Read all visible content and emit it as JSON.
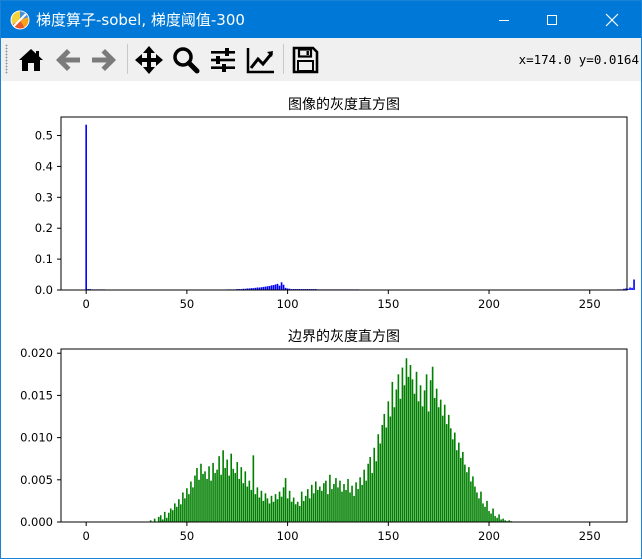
{
  "window": {
    "title": "梯度算子-sobel, 梯度阈值-300",
    "controls": [
      "minimize",
      "maximize",
      "close"
    ]
  },
  "toolbar": {
    "tools": [
      {
        "name": "home",
        "icon": "home-icon"
      },
      {
        "name": "back",
        "icon": "arrow-left-icon"
      },
      {
        "name": "forward",
        "icon": "arrow-right-icon"
      },
      {
        "name": "pan",
        "icon": "move-icon"
      },
      {
        "name": "zoom",
        "icon": "magnifier-icon"
      },
      {
        "name": "subplots",
        "icon": "sliders-icon"
      },
      {
        "name": "edit-axes",
        "icon": "chart-line-icon"
      },
      {
        "name": "save",
        "icon": "floppy-disk-icon"
      }
    ],
    "coords": "x=174.0 y=0.0164"
  },
  "chart_data": [
    {
      "type": "bar",
      "title": "图像的灰度直方图",
      "color": "#0000ff",
      "xlim": [
        -12.5,
        268.5
      ],
      "ylim": [
        0,
        0.56
      ],
      "xticks": [
        0,
        50,
        100,
        150,
        200,
        250
      ],
      "yticks": [
        0.0,
        0.1,
        0.2,
        0.3,
        0.4,
        0.5
      ],
      "xtick_labels": [
        "0",
        "50",
        "100",
        "150",
        "200",
        "250"
      ],
      "ytick_labels": [
        "0.0",
        "0.1",
        "0.2",
        "0.3",
        "0.4",
        "0.5"
      ],
      "bins_start": 0,
      "values": [
        0.535,
        0.003,
        0.003,
        0.002,
        0.002,
        0.002,
        0.002,
        0.002,
        0.002,
        0.002,
        0,
        0,
        0,
        0,
        0,
        0,
        0,
        0,
        0,
        0,
        0,
        0,
        0,
        0,
        0,
        0,
        0,
        0,
        0,
        0,
        0,
        0,
        0,
        0,
        0,
        0,
        0,
        0,
        0,
        0,
        0,
        0,
        0,
        0,
        0,
        0,
        0,
        0,
        0,
        0,
        0,
        0,
        0,
        0,
        0,
        0,
        0,
        0,
        0.001,
        0.001,
        0.001,
        0.001,
        0.001,
        0.001,
        0.001,
        0.001,
        0.001,
        0.001,
        0.001,
        0.001,
        0.002,
        0.002,
        0.002,
        0.002,
        0.002,
        0.003,
        0.003,
        0.003,
        0.004,
        0.004,
        0.005,
        0.005,
        0.006,
        0.006,
        0.007,
        0.008,
        0.008,
        0.009,
        0.01,
        0.011,
        0.012,
        0.013,
        0.015,
        0.016,
        0.018,
        0.02,
        0.014,
        0.025,
        0.017,
        0.007,
        0.005,
        0.004,
        0.003,
        0.003,
        0.003,
        0.003,
        0.003,
        0.003,
        0.003,
        0.003,
        0.003,
        0.003,
        0.003,
        0.003,
        0.003,
        0.002,
        0.002,
        0.002,
        0.002,
        0.002,
        0.002,
        0.002,
        0.002,
        0.002,
        0.002,
        0.002,
        0.002,
        0.002,
        0.002,
        0.002,
        0.002,
        0.002,
        0.002,
        0.002,
        0.002,
        0.002,
        0.001,
        0,
        0,
        0,
        0,
        0,
        0,
        0,
        0,
        0,
        0,
        0,
        0,
        0,
        0,
        0,
        0,
        0,
        0,
        0,
        0,
        0,
        0,
        0,
        0,
        0,
        0,
        0,
        0,
        0,
        0,
        0,
        0,
        0,
        0,
        0,
        0,
        0,
        0,
        0,
        0,
        0,
        0,
        0,
        0,
        0,
        0,
        0,
        0,
        0,
        0,
        0,
        0,
        0,
        0,
        0,
        0,
        0,
        0,
        0,
        0,
        0,
        0,
        0,
        0,
        0,
        0,
        0,
        0,
        0,
        0,
        0,
        0,
        0,
        0,
        0,
        0,
        0,
        0,
        0,
        0,
        0,
        0,
        0,
        0,
        0,
        0,
        0,
        0,
        0,
        0,
        0,
        0,
        0,
        0,
        0,
        0,
        0,
        0,
        0,
        0,
        0,
        0,
        0,
        0,
        0,
        0,
        0,
        0,
        0,
        0,
        0,
        0,
        0,
        0,
        0,
        0,
        0,
        0,
        0,
        0,
        0,
        0,
        0,
        0,
        0,
        0,
        0,
        0.002,
        0.002,
        0.002,
        0.004,
        0.005,
        0.004,
        0.008,
        0.007,
        0.034
      ]
    },
    {
      "type": "bar",
      "title": "边界的灰度直方图",
      "color": "#008000",
      "xlim": [
        -12.5,
        268.5
      ],
      "ylim": [
        0,
        0.0205
      ],
      "xticks": [
        0,
        50,
        100,
        150,
        200,
        250
      ],
      "yticks": [
        0.0,
        0.005,
        0.01,
        0.015,
        0.02
      ],
      "xtick_labels": [
        "0",
        "50",
        "100",
        "150",
        "200",
        "250"
      ],
      "ytick_labels": [
        "0.000",
        "0.005",
        "0.010",
        "0.015",
        "0.020"
      ],
      "bins_start": 32,
      "values": [
        0.0002,
        0,
        0.0004,
        0,
        0.0006,
        0.0008,
        0.0003,
        0.0012,
        0.0005,
        0.0011,
        0.0016,
        0.0014,
        0.0022,
        0.0018,
        0.0027,
        0.0021,
        0.0035,
        0.0028,
        0.004,
        0.0033,
        0.0048,
        0.0041,
        0.0055,
        0.0064,
        0.005,
        0.0069,
        0.0057,
        0.006,
        0.0051,
        0.0066,
        0.0049,
        0.007,
        0.0058,
        0.0062,
        0.0078,
        0.0056,
        0.0085,
        0.0064,
        0.0074,
        0.0055,
        0.0081,
        0.0063,
        0.0058,
        0.0071,
        0.0051,
        0.0065,
        0.0046,
        0.006,
        0.0042,
        0.0049,
        0.0038,
        0.0079,
        0.0033,
        0.0041,
        0.0029,
        0.0037,
        0.0025,
        0.0034,
        0.0028,
        0.0022,
        0.0031,
        0.0024,
        0.0033,
        0.0027,
        0.0036,
        0.003,
        0.0041,
        0.0052,
        0.0028,
        0.0037,
        0.0024,
        0.0029,
        0.0021,
        0.0024,
        0.0019,
        0.0036,
        0.0025,
        0.0031,
        0.0039,
        0.0028,
        0.0044,
        0.0034,
        0.0048,
        0.0038,
        0.0042,
        0.0037,
        0.0046,
        0.0049,
        0.0033,
        0.0056,
        0.0039,
        0.0045,
        0.0052,
        0.0041,
        0.0049,
        0.0036,
        0.0045,
        0.0038,
        0.0051,
        0.0035,
        0.0043,
        0.0031,
        0.0047,
        0.0039,
        0.0053,
        0.0044,
        0.0062,
        0.0049,
        0.0069,
        0.0077,
        0.0058,
        0.0088,
        0.0072,
        0.0104,
        0.0093,
        0.0115,
        0.0128,
        0.0112,
        0.0143,
        0.0125,
        0.0166,
        0.0136,
        0.0157,
        0.0175,
        0.0146,
        0.0183,
        0.0162,
        0.0194,
        0.0172,
        0.0186,
        0.0169,
        0.0152,
        0.0178,
        0.0143,
        0.0162,
        0.0137,
        0.0156,
        0.0175,
        0.0131,
        0.0168,
        0.0184,
        0.0147,
        0.0158,
        0.0136,
        0.0145,
        0.0126,
        0.0139,
        0.0116,
        0.0127,
        0.0111,
        0.0098,
        0.0106,
        0.0085,
        0.0094,
        0.0076,
        0.0083,
        0.0068,
        0.0059,
        0.0065,
        0.0048,
        0.0054,
        0.0042,
        0.0035,
        0.0028,
        0.0036,
        0.0022,
        0.0018,
        0.0025,
        0.0013,
        0.001,
        0.0016,
        0.0007,
        0.0005,
        0.0009,
        0.0003,
        0.0004,
        0.0002,
        0.0001,
        0.0002,
        0.0001
      ]
    }
  ]
}
